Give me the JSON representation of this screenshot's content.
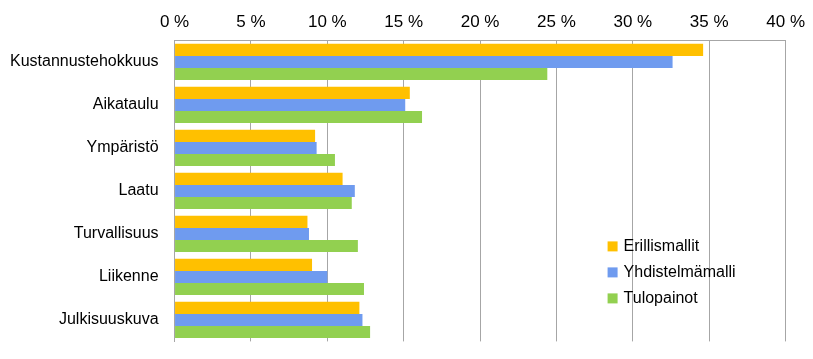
{
  "chart_data": {
    "type": "bar",
    "orientation": "horizontal",
    "categories": [
      "Kustannustehokkuus",
      "Aikataulu",
      "Ympäristö",
      "Laatu",
      "Turvallisuus",
      "Liikenne",
      "Julkisuuskuva"
    ],
    "series": [
      {
        "name": "Erillismallit",
        "color": "#FFC000",
        "values": [
          34.6,
          15.4,
          9.2,
          11.0,
          8.7,
          9.0,
          12.1
        ]
      },
      {
        "name": "Yhdistelmämalli",
        "color": "#6F9BEF",
        "values": [
          32.6,
          15.1,
          9.3,
          11.8,
          8.8,
          10.0,
          12.3
        ]
      },
      {
        "name": "Tulopainot",
        "color": "#92D050",
        "values": [
          24.4,
          16.2,
          10.5,
          11.6,
          12.0,
          12.4,
          12.8
        ]
      }
    ],
    "xlim": [
      0,
      40
    ],
    "xticks": [
      {
        "value": 0,
        "label": "0 %"
      },
      {
        "value": 5,
        "label": "5 %"
      },
      {
        "value": 10,
        "label": "10 %"
      },
      {
        "value": 15,
        "label": "15 %"
      },
      {
        "value": 20,
        "label": "20 %"
      },
      {
        "value": 25,
        "label": "25 %"
      },
      {
        "value": 30,
        "label": "30 %"
      },
      {
        "value": 35,
        "label": "35 %"
      },
      {
        "value": 40,
        "label": "40 %"
      }
    ],
    "grid": true,
    "legend": "lower right"
  }
}
